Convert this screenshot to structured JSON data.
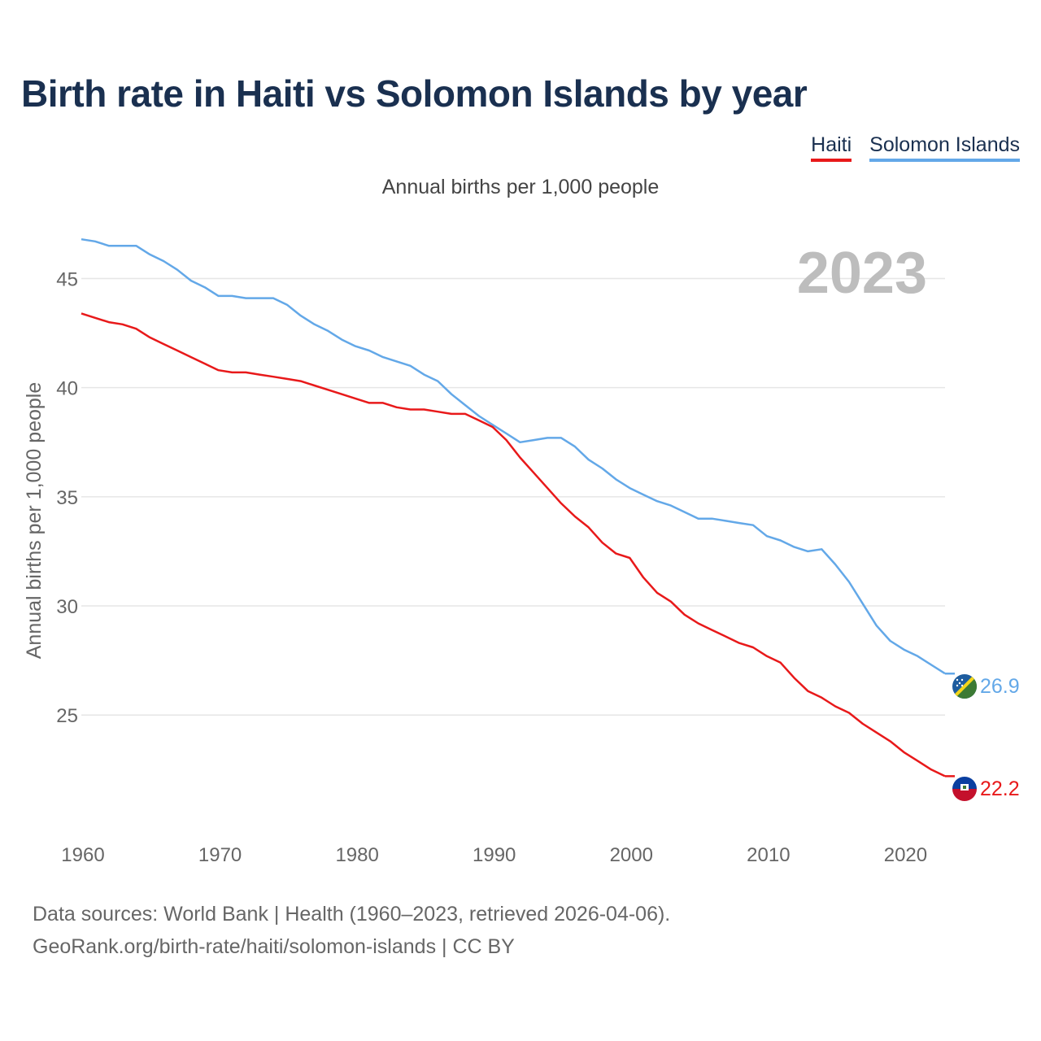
{
  "title": "Birth rate in Haiti vs Solomon Islands by year",
  "legend": {
    "haiti": "Haiti",
    "solomon": "Solomon Islands"
  },
  "subtitle": "Annual births per 1,000 people",
  "footer": {
    "line1": "Data sources: World Bank | Health (1960–2023, retrieved 2026-04-06).",
    "line2": "GeoRank.org/birth-rate/haiti/solomon-islands | CC BY"
  },
  "colors": {
    "haiti": "#e8191a",
    "solomon": "#63a8e8",
    "grid": "#e6e6e6"
  },
  "chart_data": {
    "type": "line",
    "title": "Birth rate in Haiti vs Solomon Islands by year",
    "ylabel": "Annual births per 1,000 people",
    "xlabel": "",
    "year_label": "2023",
    "xlim": [
      1960,
      2023
    ],
    "ylim": [
      20.5,
      47.7
    ],
    "yticks": [
      25,
      30,
      35,
      40,
      45
    ],
    "xticks": [
      1960,
      1970,
      1980,
      1990,
      2000,
      2010,
      2020
    ],
    "grid": true,
    "x_start": 1960,
    "series": [
      {
        "name": "Haiti",
        "color": "#e8191a",
        "end_label": "22.2",
        "values": [
          43.4,
          43.2,
          43.0,
          42.9,
          42.7,
          42.3,
          42.0,
          41.7,
          41.4,
          41.1,
          40.8,
          40.7,
          40.7,
          40.6,
          40.5,
          40.4,
          40.3,
          40.1,
          39.9,
          39.7,
          39.5,
          39.3,
          39.3,
          39.1,
          39.0,
          39.0,
          38.9,
          38.8,
          38.8,
          38.5,
          38.2,
          37.6,
          36.8,
          36.1,
          35.4,
          34.7,
          34.1,
          33.6,
          32.9,
          32.4,
          32.2,
          31.3,
          30.6,
          30.2,
          29.6,
          29.2,
          28.9,
          28.6,
          28.3,
          28.1,
          27.7,
          27.4,
          26.7,
          26.1,
          25.8,
          25.4,
          25.1,
          24.6,
          24.2,
          23.8,
          23.3,
          22.9,
          22.5,
          22.2
        ]
      },
      {
        "name": "Solomon Islands",
        "color": "#63a8e8",
        "end_label": "26.9",
        "values": [
          46.8,
          46.7,
          46.5,
          46.5,
          46.5,
          46.1,
          45.8,
          45.4,
          44.9,
          44.6,
          44.2,
          44.2,
          44.1,
          44.1,
          44.1,
          43.8,
          43.3,
          42.9,
          42.6,
          42.2,
          41.9,
          41.7,
          41.4,
          41.2,
          41.0,
          40.6,
          40.3,
          39.7,
          39.2,
          38.7,
          38.3,
          37.9,
          37.5,
          37.6,
          37.7,
          37.7,
          37.3,
          36.7,
          36.3,
          35.8,
          35.4,
          35.1,
          34.8,
          34.6,
          34.3,
          34.0,
          34.0,
          33.9,
          33.8,
          33.7,
          33.2,
          33.0,
          32.7,
          32.5,
          32.6,
          31.9,
          31.1,
          30.1,
          29.1,
          28.4,
          28.0,
          27.7,
          27.3,
          26.9
        ]
      }
    ]
  }
}
